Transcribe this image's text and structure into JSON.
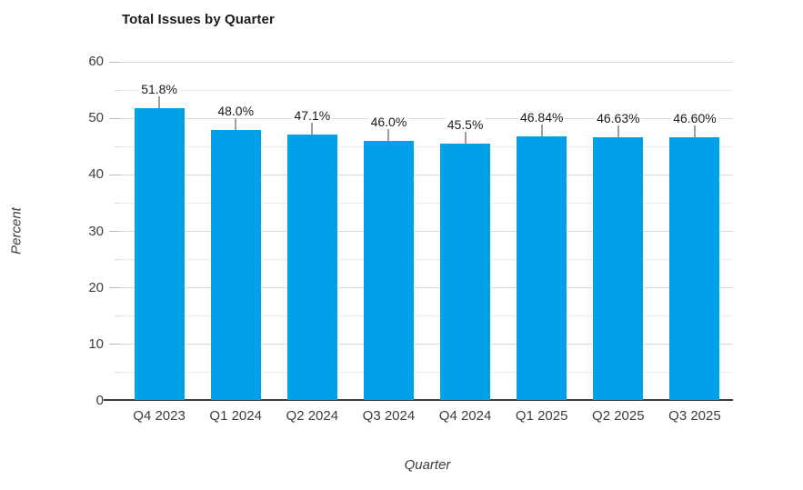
{
  "chart_data": {
    "type": "bar",
    "title": "Total Issues by Quarter",
    "xlabel": "Quarter",
    "ylabel": "Percent",
    "categories": [
      "Q4 2023",
      "Q1 2024",
      "Q2 2024",
      "Q3 2024",
      "Q4 2024",
      "Q1 2025",
      "Q2 2025",
      "Q3 2025"
    ],
    "values": [
      51.8,
      48.0,
      47.1,
      46.0,
      45.5,
      46.84,
      46.63,
      46.6
    ],
    "value_labels": [
      "51.8%",
      "48.0%",
      "47.1%",
      "46.0%",
      "45.5%",
      "46.84%",
      "46.63%",
      "46.60%"
    ],
    "ylim": [
      0,
      60
    ],
    "y_ticks": [
      0,
      10,
      20,
      30,
      40,
      50,
      60
    ],
    "y_minor_step": 5,
    "grid": "horizontal",
    "legend": "none",
    "bar_color": "#00A1E8"
  },
  "colors": {
    "bar": "#00A1E8",
    "grid_major": "#d9d9d9",
    "grid_minor": "#ececec",
    "axis_line": "#3c3c3c",
    "tick_text": "#3d3d3d",
    "title_text": "#1a1a1a",
    "connector": "#9e9e9e"
  }
}
